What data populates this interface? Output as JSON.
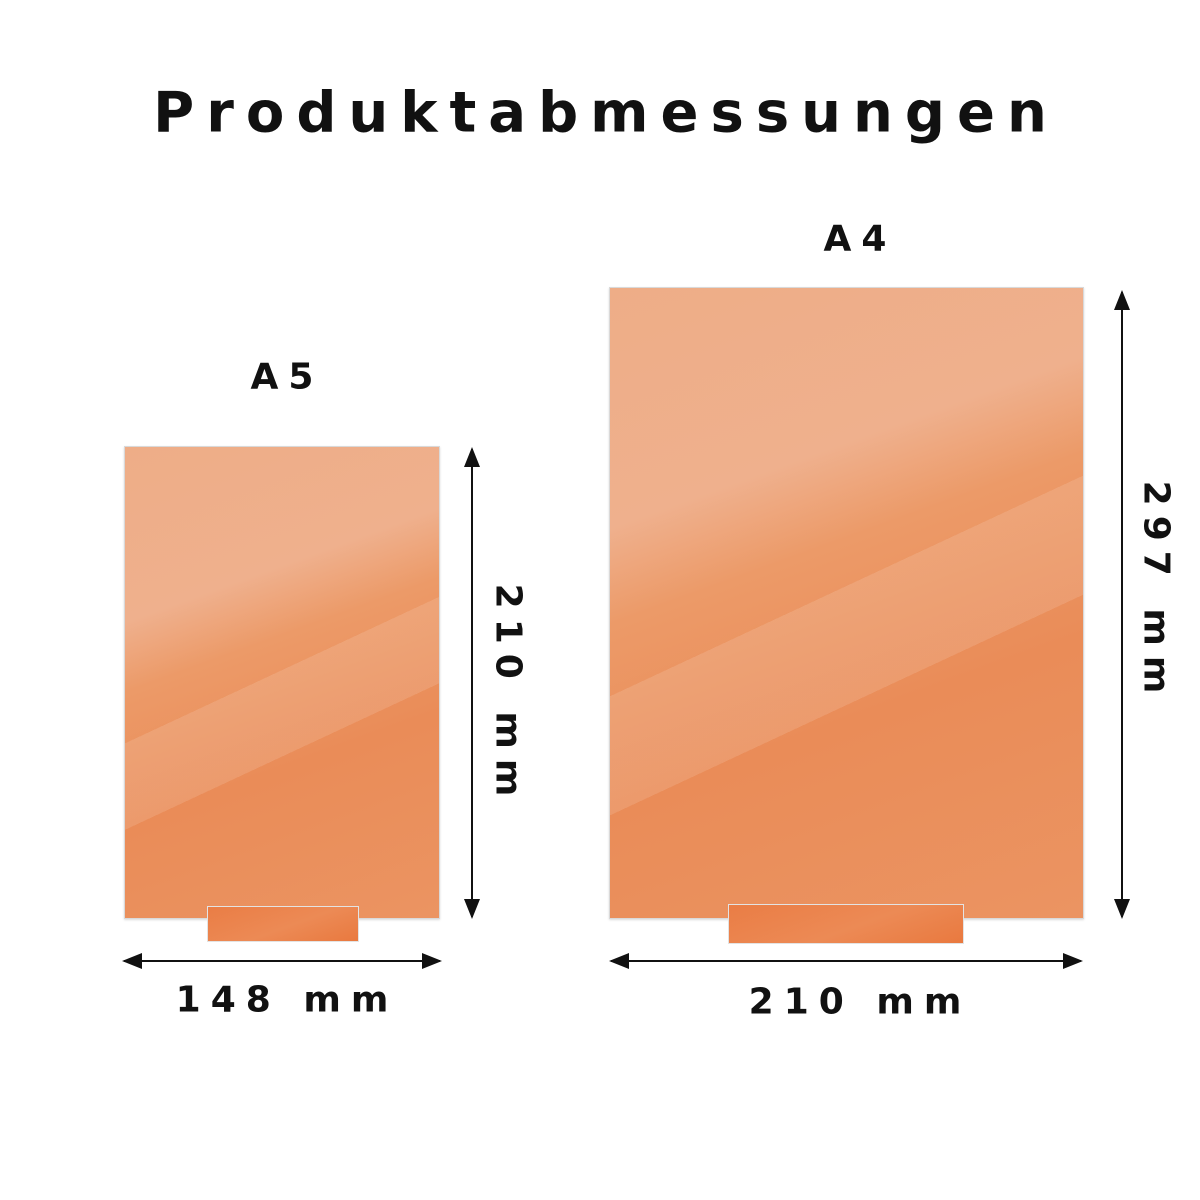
{
  "title": "Produktabmessungen",
  "panel_color": "#ec9a68",
  "sizes": [
    {
      "name": "A5",
      "width_label": "148 mm",
      "height_label": "210 mm"
    },
    {
      "name": "A4",
      "width_label": "210 mm",
      "height_label": "297 mm"
    }
  ]
}
